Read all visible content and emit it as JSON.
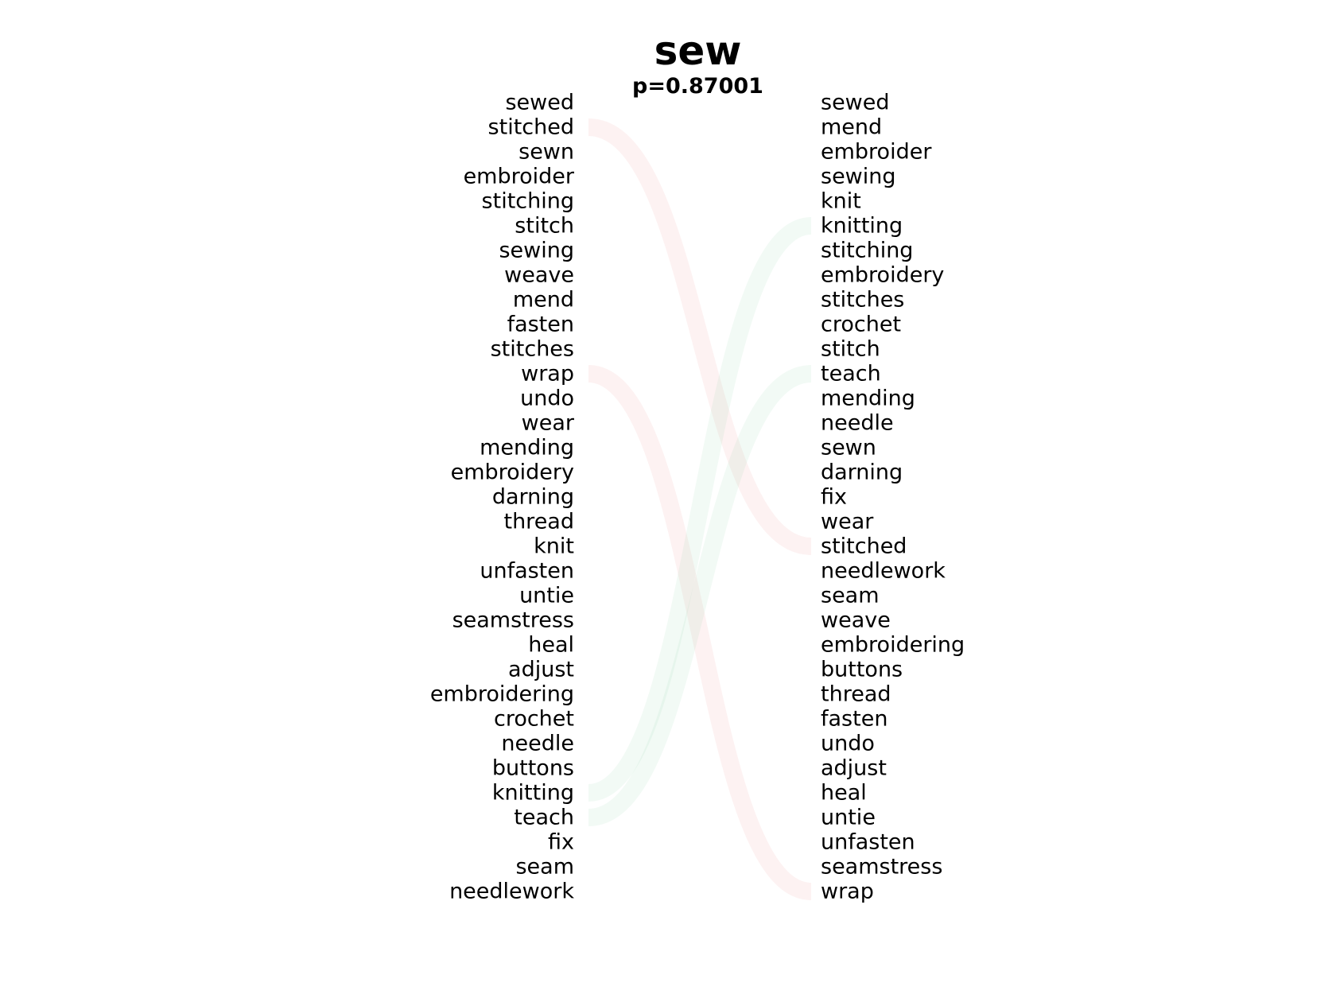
{
  "title": "sew",
  "subtitle": "p=0.87001",
  "left_list": [
    "sewed",
    "stitched",
    "sewn",
    "embroider",
    "stitching",
    "stitch",
    "sewing",
    "weave",
    "mend",
    "fasten",
    "stitches",
    "wrap",
    "undo",
    "wear",
    "mending",
    "embroidery",
    "darning",
    "thread",
    "knit",
    "unfasten",
    "untie",
    "seamstress",
    "heal",
    "adjust",
    "embroidering",
    "crochet",
    "needle",
    "buttons",
    "knitting",
    "teach",
    "fix",
    "seam",
    "needlework"
  ],
  "right_list": [
    "sewed",
    "mend",
    "embroider",
    "sewing",
    "knit",
    "knitting",
    "stitching",
    "embroidery",
    "stitches",
    "crochet",
    "stitch",
    "teach",
    "mending",
    "needle",
    "sewn",
    "darning",
    "fix",
    "wear",
    "stitched",
    "needlework",
    "seam",
    "weave",
    "embroidering",
    "buttons",
    "thread",
    "fasten",
    "undo",
    "adjust",
    "heal",
    "untie",
    "unfasten",
    "seamstress",
    "wrap"
  ],
  "highlighted_links": [
    {
      "word": "stitched",
      "color": "#f4a6a6",
      "side": "left"
    },
    {
      "word": "wrap",
      "color": "#f4a6a6",
      "side": "left"
    },
    {
      "word": "knitting",
      "color": "#a6dcb8",
      "side": "right"
    },
    {
      "word": "teach",
      "color": "#a6dcb8",
      "side": "right"
    }
  ]
}
